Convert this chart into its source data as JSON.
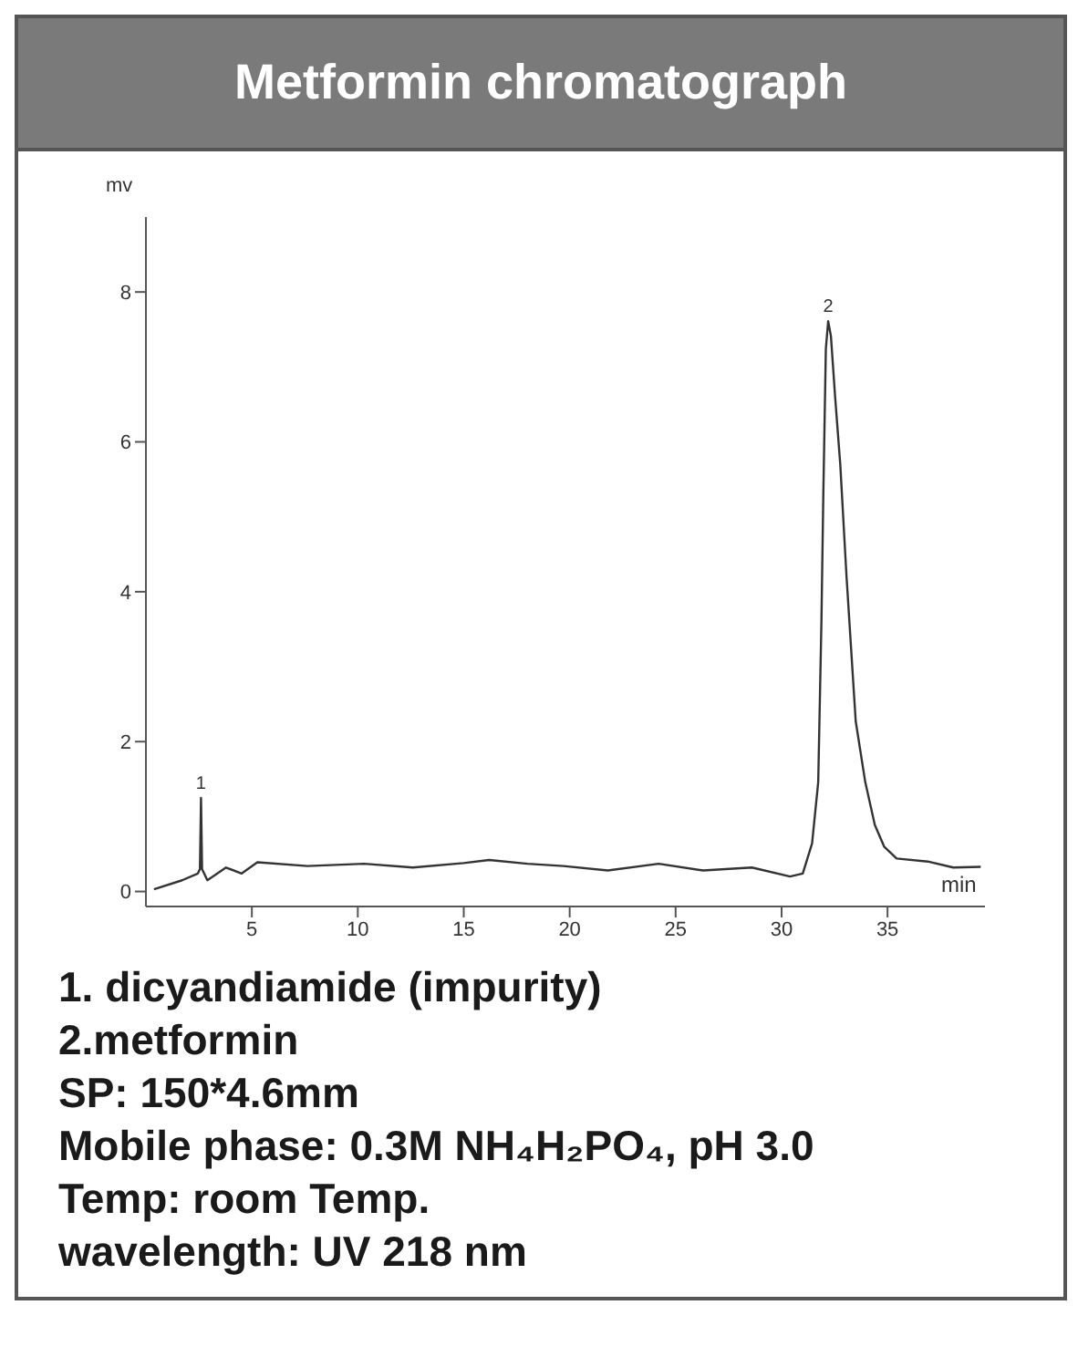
{
  "chart_data": {
    "type": "line",
    "title": "Metformin chromatograph",
    "xlabel": "min",
    "ylabel": "mv",
    "xlim": [
      0,
      39.6
    ],
    "ylim": [
      -0.2,
      9
    ],
    "xticks": [
      5,
      10,
      15,
      20,
      25,
      30,
      35
    ],
    "yticks": [
      0,
      2,
      4,
      6,
      8
    ],
    "grid": false,
    "legend": false,
    "marker": "none",
    "series": [
      {
        "color": "#333333",
        "x": [
          0.38,
          1.71,
          2.45,
          2.55,
          2.6,
          2.65,
          2.9,
          3.78,
          4.52,
          5.26,
          7.63,
          10.3,
          12.6,
          15.0,
          16.2,
          18.0,
          19.7,
          21.8,
          24.2,
          26.3,
          28.6,
          30.4,
          31.0,
          31.44,
          31.73,
          31.88,
          31.97,
          32.09,
          32.2,
          32.33,
          32.53,
          32.77,
          33.06,
          33.5,
          33.95,
          34.4,
          34.84,
          35.43,
          36.9,
          38.1,
          39.4
        ],
        "values": [
          0.03,
          0.15,
          0.24,
          0.3,
          1.25,
          0.3,
          0.15,
          0.32,
          0.24,
          0.39,
          0.34,
          0.37,
          0.32,
          0.38,
          0.42,
          0.37,
          0.34,
          0.28,
          0.37,
          0.28,
          0.32,
          0.2,
          0.24,
          0.64,
          1.46,
          3.58,
          5.29,
          7.24,
          7.61,
          7.41,
          6.59,
          5.7,
          4.23,
          2.27,
          1.46,
          0.89,
          0.6,
          0.44,
          0.4,
          0.32,
          0.33
        ]
      }
    ],
    "annotations": [
      {
        "text": "1",
        "x": 2.6,
        "y": 1.25
      },
      {
        "text": "2",
        "x": 32.2,
        "y": 7.61
      },
      "1. dicyandiamide (impurity)",
      "2.metformin",
      "SP: 150*4.6mm",
      "Mobile phase: 0.3M NH₄H₂PO₄, pH 3.0",
      "Temp: room Temp.",
      "wavelength: UV 218 nm"
    ]
  }
}
